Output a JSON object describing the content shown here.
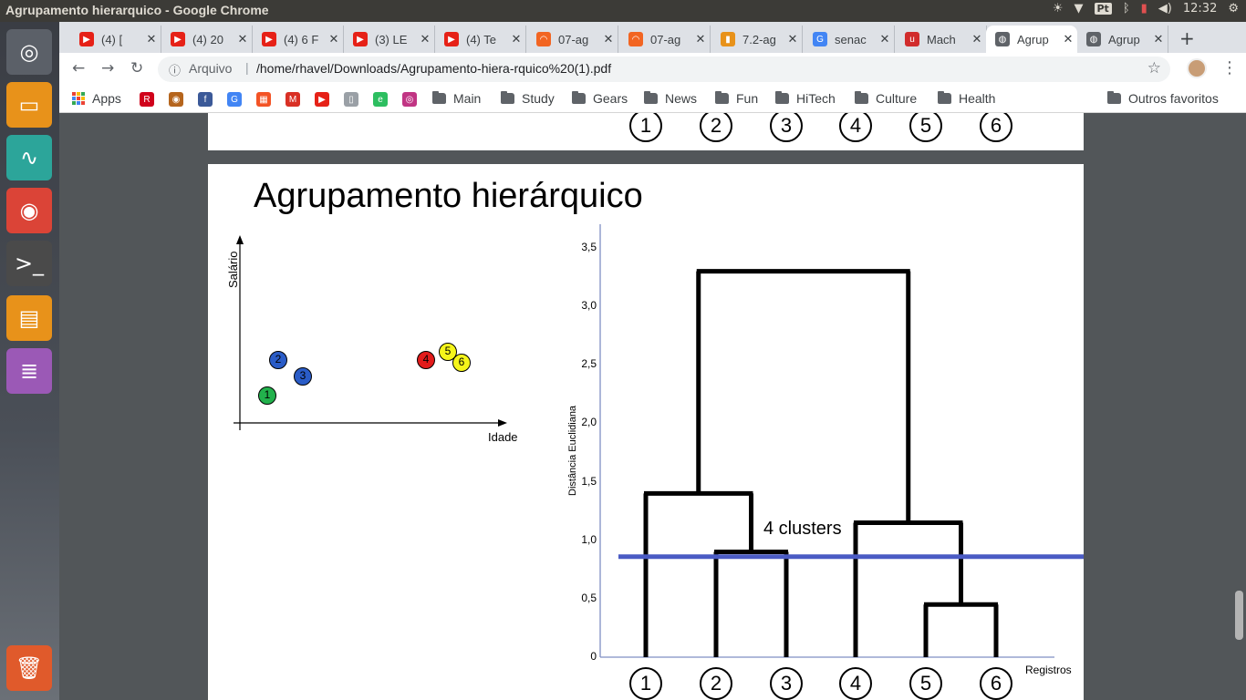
{
  "window": {
    "title": "Agrupamento hierarquico - Google Chrome",
    "keyboard": "Pt",
    "time": "12:32"
  },
  "launcher": [
    {
      "name": "ubuntu-dash-icon",
      "glyph": "◎",
      "color": "#5b6068"
    },
    {
      "name": "files-icon",
      "glyph": "▭",
      "color": "#e8921a"
    },
    {
      "name": "system-monitor-icon",
      "glyph": "∿",
      "color": "#2ca59a"
    },
    {
      "name": "chrome-icon",
      "glyph": "◉",
      "color": "#db4437"
    },
    {
      "name": "terminal-icon",
      "glyph": ">_",
      "color": "#4a4a4a"
    },
    {
      "name": "archive-icon",
      "glyph": "▤",
      "color": "#e8921a"
    },
    {
      "name": "text-editor-icon",
      "glyph": "≣",
      "color": "#9b59b6"
    },
    {
      "name": "trash-icon",
      "glyph": "🗑",
      "color": "#e05a2b"
    }
  ],
  "tabs": [
    {
      "label": "(4) [",
      "fav": "▶",
      "favcolor": "#e62117"
    },
    {
      "label": "(4) 20",
      "fav": "▶",
      "favcolor": "#e62117"
    },
    {
      "label": "(4) 6 F",
      "fav": "▶",
      "favcolor": "#e62117"
    },
    {
      "label": "(3) LE",
      "fav": "▶",
      "favcolor": "#e62117"
    },
    {
      "label": "(4) Te",
      "fav": "▶",
      "favcolor": "#e62117"
    },
    {
      "label": "07-ag",
      "fav": "◠",
      "favcolor": "#f26522"
    },
    {
      "label": "07-ag",
      "fav": "◠",
      "favcolor": "#f26522"
    },
    {
      "label": "7.2-ag",
      "fav": "▮",
      "favcolor": "#e8921a"
    },
    {
      "label": "senac",
      "fav": "G",
      "favcolor": "#4285f4"
    },
    {
      "label": "Mach",
      "fav": "u",
      "favcolor": "#d12c2c"
    },
    {
      "label": "Agrup",
      "fav": "◍",
      "favcolor": "#5f6368"
    },
    {
      "label": "Agrup",
      "fav": "◍",
      "favcolor": "#5f6368"
    }
  ],
  "address": {
    "info": "ⓘ",
    "scheme": "Arquivo",
    "url": "/home/rhavel/Downloads/Agrupamento-hiera-rquico%20(1).pdf"
  },
  "bookmarks": {
    "apps": "Apps",
    "icons": [
      {
        "name": "bookmark-r-icon",
        "glyph": "R",
        "color": "#d0021b"
      },
      {
        "name": "bookmark-globe-icon",
        "glyph": "◉",
        "color": "#b5651d"
      },
      {
        "name": "bookmark-facebook-icon",
        "glyph": "f",
        "color": "#3b5998"
      },
      {
        "name": "bookmark-translate-icon",
        "glyph": "G",
        "color": "#4285f4"
      },
      {
        "name": "bookmark-microsoft-icon",
        "glyph": "▦",
        "color": "#f35325"
      },
      {
        "name": "bookmark-gmail-icon",
        "glyph": "M",
        "color": "#d93025"
      },
      {
        "name": "bookmark-youtube-icon",
        "glyph": "▶",
        "color": "#e62117"
      },
      {
        "name": "bookmark-reader-icon",
        "glyph": "▯",
        "color": "#9aa0a6"
      },
      {
        "name": "bookmark-evernote-icon",
        "glyph": "e",
        "color": "#2dbe60"
      },
      {
        "name": "bookmark-instagram-icon",
        "glyph": "◎",
        "color": "#c13584"
      }
    ],
    "folders": [
      "Main",
      "Study",
      "Gears",
      "News",
      "Fun",
      "HiTech",
      "Culture",
      "Health"
    ],
    "other": "Outros favoritos"
  },
  "prev_page": {
    "registers": [
      "1",
      "2",
      "3",
      "4",
      "5",
      "6"
    ]
  },
  "slide": {
    "title": "Agrupamento hierárquico",
    "scatter": {
      "ylabel": "Salário",
      "xlabel": "Idade",
      "points": [
        {
          "label": "1",
          "color": "#22b14c"
        },
        {
          "label": "2",
          "color": "#2a5cc7"
        },
        {
          "label": "3",
          "color": "#2a5cc7"
        },
        {
          "label": "4",
          "color": "#e21b1b"
        },
        {
          "label": "5",
          "color": "#f5f51a"
        },
        {
          "label": "6",
          "color": "#f5f51a"
        }
      ]
    },
    "dendrogram": {
      "ylabel": "Distância Euclidiana",
      "xlabel": "Registros",
      "yticks": [
        "3,5",
        "3,0",
        "2,5",
        "2,0",
        "1,5",
        "1,0",
        "0,5",
        "0"
      ],
      "leaves": [
        "1",
        "2",
        "3",
        "4",
        "5",
        "6"
      ],
      "cut_label": "4 clusters",
      "cut_color": "#4a5bc4"
    }
  },
  "chart_data": [
    {
      "type": "scatter",
      "xlabel": "Idade",
      "ylabel": "Salário",
      "series": [
        {
          "name": "1",
          "color": "#22b14c",
          "x": [
            1.0
          ],
          "y": [
            1.0
          ]
        },
        {
          "name": "2",
          "color": "#2a5cc7",
          "x": [
            1.4
          ],
          "y": [
            2.3
          ]
        },
        {
          "name": "3",
          "color": "#2a5cc7",
          "x": [
            2.3
          ],
          "y": [
            1.7
          ]
        },
        {
          "name": "4",
          "color": "#e21b1b",
          "x": [
            6.8
          ],
          "y": [
            2.3
          ]
        },
        {
          "name": "5",
          "color": "#f5f51a",
          "x": [
            7.6
          ],
          "y": [
            2.6
          ]
        },
        {
          "name": "6",
          "color": "#f5f51a",
          "x": [
            8.1
          ],
          "y": [
            2.2
          ]
        }
      ],
      "xlim": [
        0,
        10
      ],
      "ylim": [
        0,
        7
      ]
    },
    {
      "type": "dendrogram",
      "xlabel": "Registros",
      "ylabel": "Distância Euclidiana",
      "categories": [
        "1",
        "2",
        "3",
        "4",
        "5",
        "6"
      ],
      "ylim": [
        0,
        3.5
      ],
      "merges": [
        {
          "left": "5",
          "right": "6",
          "height": 0.45
        },
        {
          "left": "2",
          "right": "3",
          "height": 0.9
        },
        {
          "left": "4",
          "right": "5,6",
          "height": 1.15
        },
        {
          "left": "1",
          "right": "2,3",
          "height": 1.4
        },
        {
          "left": "1,2,3",
          "right": "4,5,6",
          "height": 3.3
        }
      ],
      "cut_height": 1.0,
      "cut_label": "4 clusters"
    }
  ]
}
